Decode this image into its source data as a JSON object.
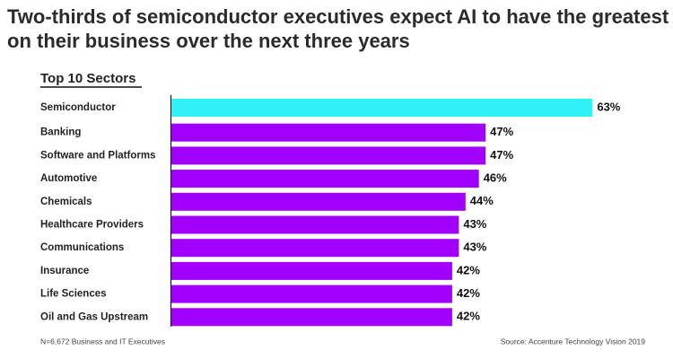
{
  "chart_data": {
    "type": "bar",
    "title": "Two-thirds of semiconductor executives expect AI to have the greatest impact on their business over the next three years",
    "subtitle": "Top 10 Sectors",
    "categories": [
      "Semiconductor",
      "Banking",
      "Software and Platforms",
      "Automotive",
      "Chemicals",
      "Healthcare Providers",
      "Communications",
      "Insurance",
      "Life Sciences",
      "Oil and Gas Upstream"
    ],
    "values": [
      63,
      47,
      47,
      46,
      44,
      43,
      43,
      42,
      42,
      42
    ],
    "value_labels": [
      "63%",
      "47%",
      "47%",
      "46%",
      "44%",
      "43%",
      "43%",
      "42%",
      "42%",
      "42%"
    ],
    "colors": [
      "#2ef2f7",
      "#a100ff",
      "#a100ff",
      "#a100ff",
      "#a100ff",
      "#a100ff",
      "#a100ff",
      "#a100ff",
      "#a100ff",
      "#a100ff"
    ],
    "note": "N=6,672 Business and IT Executives",
    "source": "Source: Accenture Technology Vision 2019"
  }
}
